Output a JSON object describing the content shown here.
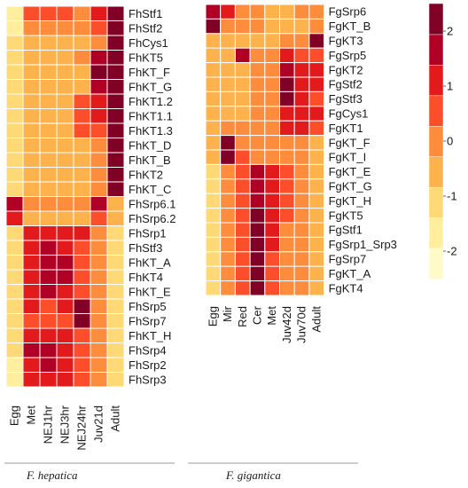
{
  "chart_data": [
    {
      "type": "heatmap",
      "title": "",
      "species_label": "F. hepatica",
      "columns": [
        "Egg",
        "Met",
        "NEJ1hr",
        "NEJ3hr",
        "NEJ24hr",
        "Juv21d",
        "Adult"
      ],
      "rows": [
        "FhStf1",
        "FhStf2",
        "FhCys1",
        "FhKT5",
        "FhKT_F",
        "FhKT_G",
        "FhKT1.2",
        "FhKT1.1",
        "FhKT1.3",
        "FhKT_D",
        "FhKT_B",
        "FhKT2",
        "FhKT_C",
        "FhSrp6.1",
        "FhSrp6.2",
        "FhSrp1",
        "FhStf3",
        "FhKT_A",
        "FhKT4",
        "FhKT_E",
        "FhSrp5",
        "FhSrp7",
        "FhKT_H",
        "FhSrp4",
        "FhSrp2",
        "FhSrp3"
      ],
      "values": [
        [
          -1.5,
          0.5,
          0.5,
          0.5,
          0.0,
          1.0,
          2.0
        ],
        [
          -1.5,
          0.0,
          0.0,
          0.0,
          0.0,
          0.5,
          2.0
        ],
        [
          -1.0,
          -0.5,
          -0.5,
          -0.5,
          -0.5,
          0.0,
          2.5
        ],
        [
          -1.0,
          -0.5,
          -0.5,
          -0.5,
          0.0,
          1.5,
          2.0
        ],
        [
          -1.0,
          -0.5,
          -0.5,
          -0.5,
          -0.5,
          2.0,
          2.0
        ],
        [
          -1.0,
          -0.5,
          -0.5,
          -0.5,
          -0.5,
          1.5,
          2.0
        ],
        [
          -1.0,
          -0.5,
          -0.5,
          -0.5,
          0.5,
          1.0,
          2.0
        ],
        [
          -1.0,
          -0.5,
          -0.5,
          -0.5,
          0.5,
          1.0,
          2.0
        ],
        [
          -1.0,
          -0.5,
          -0.5,
          -0.5,
          0.5,
          0.5,
          2.0
        ],
        [
          -1.0,
          -0.5,
          -0.5,
          -0.5,
          -0.5,
          0.0,
          2.5
        ],
        [
          -1.0,
          -0.5,
          -0.5,
          -0.5,
          -0.5,
          0.0,
          2.5
        ],
        [
          -1.0,
          -0.5,
          -0.5,
          -0.5,
          -0.5,
          0.0,
          2.5
        ],
        [
          -1.0,
          -0.5,
          -0.5,
          -0.5,
          -0.5,
          0.0,
          2.5
        ],
        [
          1.5,
          0.0,
          0.0,
          0.0,
          0.0,
          1.5,
          -0.5
        ],
        [
          1.0,
          -0.5,
          -0.5,
          -0.5,
          -0.5,
          0.5,
          -0.5
        ],
        [
          -1.0,
          1.0,
          1.0,
          1.0,
          1.0,
          0.0,
          -1.0
        ],
        [
          -1.0,
          1.0,
          1.5,
          1.0,
          0.5,
          0.0,
          -1.0
        ],
        [
          -1.0,
          1.0,
          1.5,
          1.5,
          0.5,
          0.0,
          -1.0
        ],
        [
          -1.0,
          1.0,
          1.5,
          1.5,
          0.5,
          0.0,
          -1.0
        ],
        [
          -1.0,
          1.0,
          1.5,
          1.0,
          0.5,
          0.0,
          -1.0
        ],
        [
          -1.0,
          1.0,
          0.5,
          1.0,
          2.5,
          0.0,
          -1.0
        ],
        [
          -1.0,
          0.5,
          0.5,
          0.5,
          2.5,
          0.0,
          -1.0
        ],
        [
          -1.0,
          1.0,
          1.0,
          1.0,
          0.5,
          0.0,
          -1.0
        ],
        [
          -1.0,
          1.5,
          1.5,
          1.0,
          0.5,
          0.0,
          -1.0
        ],
        [
          -1.5,
          1.0,
          1.5,
          1.0,
          0.5,
          0.0,
          -1.0
        ],
        [
          -1.5,
          1.0,
          1.0,
          1.0,
          0.5,
          0.0,
          -1.0
        ]
      ]
    },
    {
      "type": "heatmap",
      "title": "",
      "species_label": "F. gigantica",
      "columns": [
        "Egg",
        "Mir",
        "Red",
        "Cer",
        "Met",
        "Juv42d",
        "Juv70d",
        "Adult"
      ],
      "rows": [
        "FgSrp6",
        "FgKT_B",
        "FgKT3",
        "FgSrp5",
        "FgKT2",
        "FgStf2",
        "FgStf3",
        "FgCys1",
        "FgKT1",
        "FgKT_F",
        "FgKT_I",
        "FgKT_E",
        "FgKT_G",
        "FgKT_H",
        "FgKT5",
        "FgStf1",
        "FgSrp1_Srp3",
        "FgSrp7",
        "FgKT_A",
        "FgKT4"
      ],
      "values": [
        [
          1.5,
          1.0,
          0.0,
          0.0,
          -0.5,
          -0.5,
          0.0,
          0.0
        ],
        [
          2.5,
          0.0,
          0.0,
          0.0,
          -0.5,
          -0.5,
          -0.5,
          0.0
        ],
        [
          -0.5,
          -0.5,
          -0.5,
          -0.5,
          -0.5,
          0.0,
          0.0,
          2.5
        ],
        [
          -0.5,
          -0.5,
          1.5,
          0.0,
          0.0,
          1.0,
          0.5,
          0.5
        ],
        [
          -0.5,
          -0.5,
          -0.5,
          0.0,
          0.0,
          1.5,
          1.0,
          1.0
        ],
        [
          -0.5,
          -0.5,
          -0.5,
          0.0,
          0.0,
          2.0,
          1.0,
          1.0
        ],
        [
          -0.5,
          -0.5,
          -0.5,
          0.0,
          0.0,
          2.0,
          1.0,
          0.5
        ],
        [
          -0.5,
          -0.5,
          -0.5,
          0.0,
          0.0,
          1.0,
          1.0,
          1.0
        ],
        [
          -0.5,
          0.0,
          0.0,
          0.0,
          0.0,
          1.0,
          1.0,
          0.5
        ],
        [
          -0.5,
          2.5,
          0.0,
          0.0,
          0.0,
          0.0,
          0.0,
          -0.5
        ],
        [
          -0.5,
          2.5,
          0.5,
          0.0,
          0.0,
          0.0,
          0.0,
          -0.5
        ],
        [
          -1.0,
          0.0,
          0.5,
          1.5,
          1.0,
          0.5,
          0.0,
          -0.5
        ],
        [
          -1.0,
          0.0,
          0.5,
          1.5,
          1.0,
          0.5,
          0.0,
          -0.5
        ],
        [
          -1.0,
          0.0,
          0.5,
          1.5,
          1.0,
          0.5,
          0.0,
          -0.5
        ],
        [
          -1.0,
          0.0,
          0.5,
          2.5,
          1.0,
          0.5,
          0.0,
          -0.5
        ],
        [
          -1.0,
          0.0,
          0.5,
          2.0,
          1.0,
          0.0,
          0.0,
          -0.5
        ],
        [
          -1.0,
          0.0,
          0.5,
          2.5,
          1.0,
          0.0,
          0.0,
          -0.5
        ],
        [
          -1.0,
          0.0,
          0.5,
          2.5,
          0.5,
          0.0,
          0.0,
          -0.5
        ],
        [
          -1.0,
          0.0,
          0.5,
          2.5,
          0.5,
          0.0,
          0.0,
          -0.5
        ],
        [
          -1.0,
          0.0,
          0.5,
          2.5,
          0.5,
          0.0,
          0.0,
          -0.5
        ]
      ]
    }
  ],
  "colorbar": {
    "ticks": [
      "2",
      "1",
      "0",
      "-1",
      "-2"
    ],
    "range": [
      -2.5,
      2.5
    ],
    "colors": [
      "#fffac8",
      "#ffee9e",
      "#fed976",
      "#feb24c",
      "#fd8d3c",
      "#fc4e2a",
      "#e31a1c",
      "#b10026",
      "#800026"
    ]
  }
}
